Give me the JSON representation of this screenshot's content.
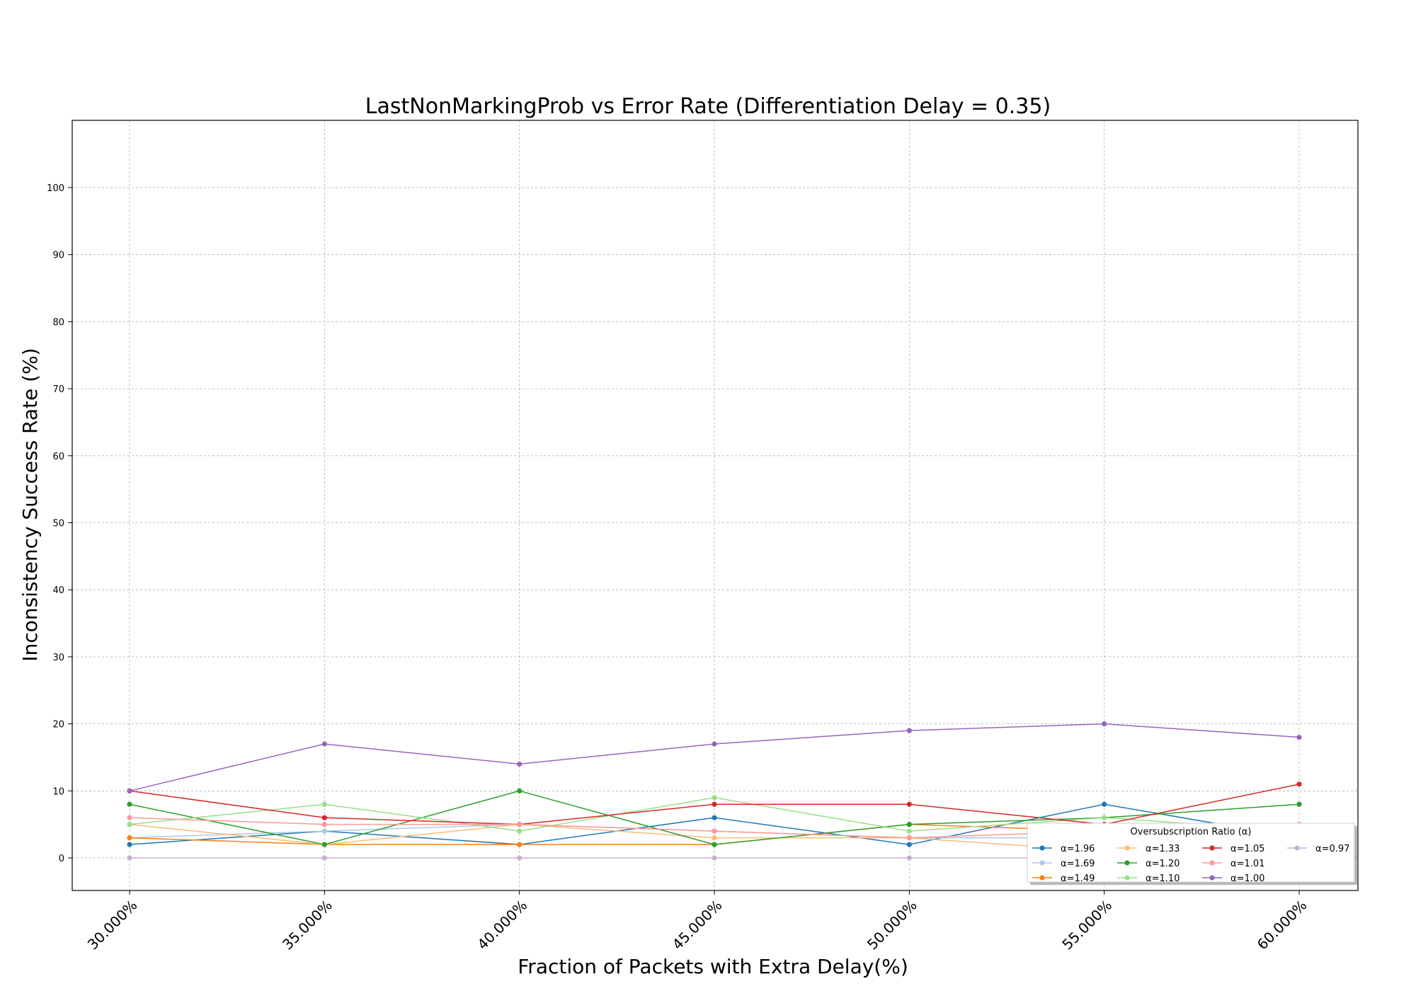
{
  "chart_data": {
    "type": "line",
    "title": "LastNonMarkingProb vs Error Rate (Differentiation Delay = 0.35)",
    "xlabel": "Fraction of Packets with Extra Delay(%)",
    "ylabel": "Inconsistency Success Rate (%)",
    "categories": [
      "30.000%",
      "35.000%",
      "40.000%",
      "45.000%",
      "50.000%",
      "55.000%",
      "60.000%"
    ],
    "ylim": [
      -5,
      110
    ],
    "yticks": [
      0,
      10,
      20,
      30,
      40,
      50,
      60,
      70,
      80,
      90,
      100
    ],
    "grid": true,
    "legend": {
      "title": "Oversubscription Ratio (α)",
      "position": "lower-right",
      "columns": 4
    },
    "series": [
      {
        "name": "α=1.96",
        "color": "#1f77b4",
        "values": [
          2,
          4,
          2,
          6,
          2,
          8,
          3
        ]
      },
      {
        "name": "α=1.69",
        "color": "#aec7e8",
        "values": [
          3,
          4,
          5,
          4,
          3,
          3,
          4
        ]
      },
      {
        "name": "α=1.49",
        "color": "#ff7f0e",
        "values": [
          3,
          2,
          2,
          2,
          5,
          4,
          4
        ]
      },
      {
        "name": "α=1.33",
        "color": "#ffbb78",
        "values": [
          5,
          2,
          5,
          3,
          3,
          1,
          3
        ]
      },
      {
        "name": "α=1.20",
        "color": "#2ca02c",
        "values": [
          8,
          2,
          10,
          2,
          5,
          6,
          8
        ]
      },
      {
        "name": "α=1.10",
        "color": "#98df8a",
        "values": [
          5,
          8,
          4,
          9,
          4,
          6,
          4
        ]
      },
      {
        "name": "α=1.05",
        "color": "#d62728",
        "values": [
          10,
          6,
          5,
          8,
          8,
          5,
          11
        ]
      },
      {
        "name": "α=1.01",
        "color": "#ff9896",
        "values": [
          6,
          5,
          5,
          4,
          3,
          4,
          5
        ]
      },
      {
        "name": "α=1.00",
        "color": "#9467bd",
        "values": [
          10,
          17,
          14,
          17,
          19,
          20,
          18
        ]
      },
      {
        "name": "α=0.97",
        "color": "#c5b0d5",
        "values": [
          0,
          0,
          0,
          0,
          0,
          0,
          0
        ]
      }
    ]
  }
}
